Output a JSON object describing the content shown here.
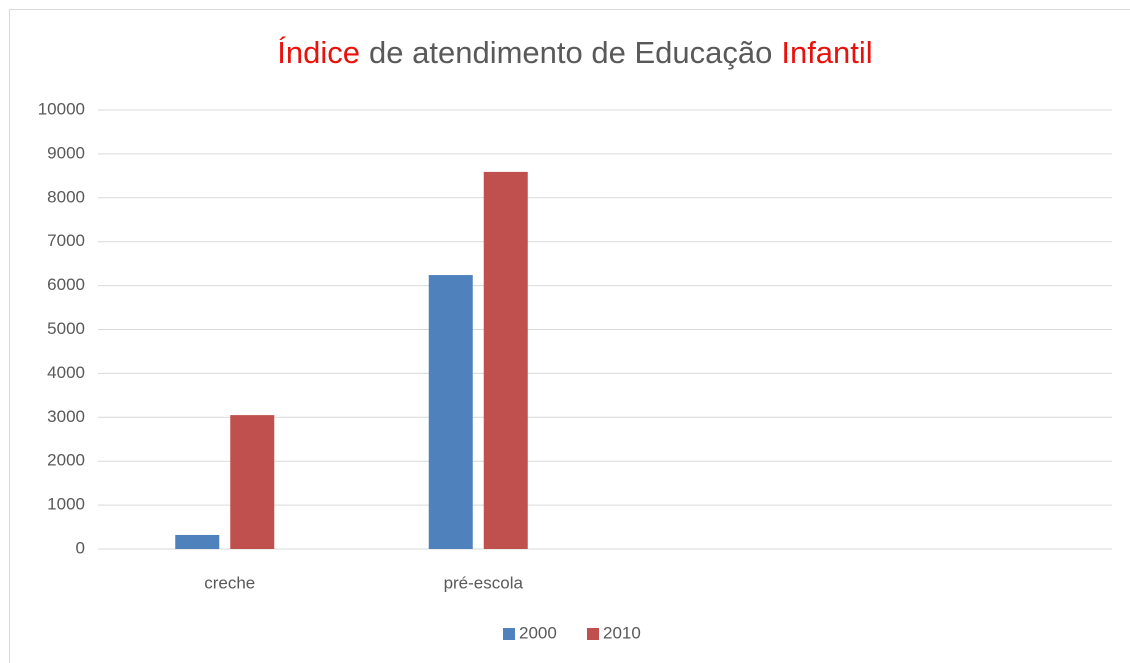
{
  "chart_data": {
    "type": "bar",
    "title": [
      {
        "text": "Índice",
        "color": "#e8120c"
      },
      {
        "text": "de atendimento de Educação",
        "color": "#595959"
      },
      {
        "text": "Infantil",
        "color": "#e8120c"
      }
    ],
    "categories": [
      "creche",
      "pré-escola",
      null,
      null
    ],
    "series": [
      {
        "name": "2000",
        "color": "#4f81bd",
        "values": [
          320,
          6240,
          null,
          null
        ]
      },
      {
        "name": "2010",
        "color": "#c0504d",
        "values": [
          3050,
          8590,
          null,
          null
        ]
      }
    ],
    "ylim": [
      0,
      10000
    ],
    "yticks": [
      0,
      1000,
      2000,
      3000,
      4000,
      5000,
      6000,
      7000,
      8000,
      9000,
      10000
    ],
    "grid": true,
    "legend": "bottom"
  }
}
